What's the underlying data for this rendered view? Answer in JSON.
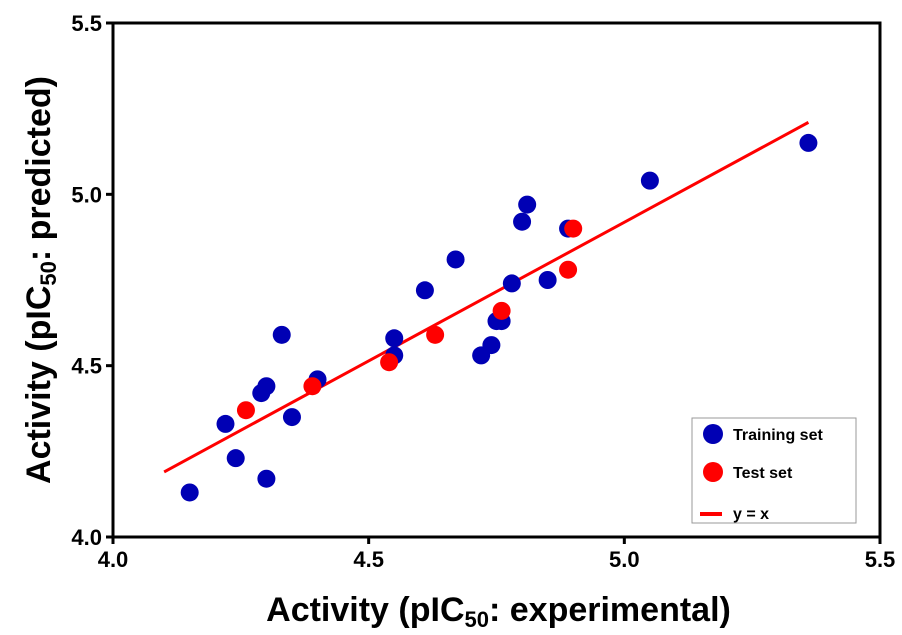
{
  "chart_data": {
    "type": "scatter",
    "xlabel": {
      "prefix": "Activity (pIC",
      "sub": "50",
      "suffix": ": experimental)"
    },
    "ylabel": {
      "prefix": "Activity (pIC",
      "sub": "50",
      "suffix": ": predicted)"
    },
    "xlim": [
      4.0,
      5.5
    ],
    "ylim": [
      4.0,
      5.5
    ],
    "xticks": [
      "4.0",
      "4.5",
      "5.0",
      "5.5"
    ],
    "yticks": [
      "4.0",
      "4.5",
      "5.0",
      "5.5"
    ],
    "grid": false,
    "legend_position": "bottom-right",
    "series": [
      {
        "name": "Training set",
        "color": "#0000b4",
        "marker": "circle",
        "points": [
          [
            4.15,
            4.13
          ],
          [
            4.22,
            4.33
          ],
          [
            4.24,
            4.23
          ],
          [
            4.29,
            4.42
          ],
          [
            4.3,
            4.44
          ],
          [
            4.3,
            4.17
          ],
          [
            4.33,
            4.59
          ],
          [
            4.35,
            4.35
          ],
          [
            4.4,
            4.46
          ],
          [
            4.55,
            4.58
          ],
          [
            4.55,
            4.53
          ],
          [
            4.61,
            4.72
          ],
          [
            4.67,
            4.81
          ],
          [
            4.72,
            4.53
          ],
          [
            4.74,
            4.56
          ],
          [
            4.75,
            4.63
          ],
          [
            4.76,
            4.63
          ],
          [
            4.78,
            4.74
          ],
          [
            4.8,
            4.92
          ],
          [
            4.81,
            4.97
          ],
          [
            4.85,
            4.75
          ],
          [
            4.89,
            4.9
          ],
          [
            5.05,
            5.04
          ],
          [
            5.36,
            5.15
          ]
        ]
      },
      {
        "name": "Test set",
        "color": "#ff0000",
        "marker": "circle",
        "points": [
          [
            4.26,
            4.37
          ],
          [
            4.39,
            4.44
          ],
          [
            4.54,
            4.51
          ],
          [
            4.63,
            4.59
          ],
          [
            4.76,
            4.66
          ],
          [
            4.89,
            4.78
          ],
          [
            4.9,
            4.9
          ]
        ]
      },
      {
        "name": "y = x",
        "color": "#ff0000",
        "marker": "line",
        "points": [
          [
            4.1,
            4.19
          ],
          [
            5.36,
            5.21
          ]
        ]
      }
    ]
  }
}
